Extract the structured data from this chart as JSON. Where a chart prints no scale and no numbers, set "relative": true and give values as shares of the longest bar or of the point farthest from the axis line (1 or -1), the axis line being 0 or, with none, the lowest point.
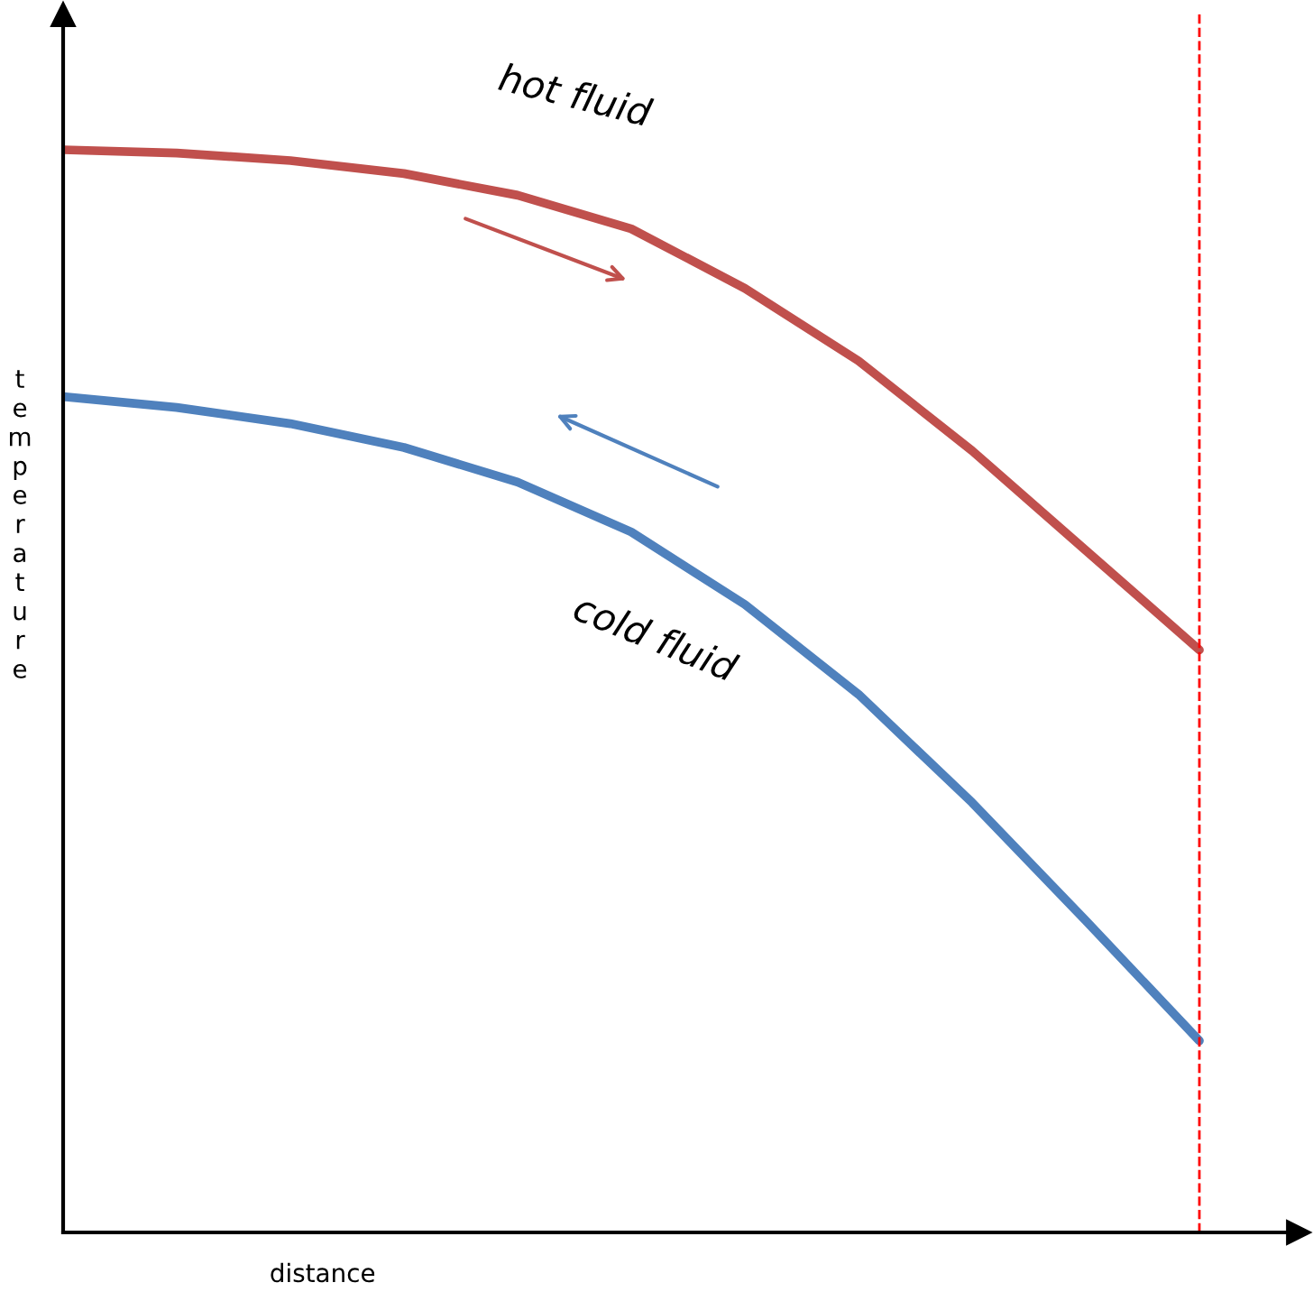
{
  "chart_data": {
    "type": "line",
    "relative": true,
    "xlabel": "distance",
    "ylabel": "temperature",
    "categories": [
      null,
      null,
      null,
      null,
      null,
      null,
      null,
      null,
      null,
      null,
      null
    ],
    "series": [
      {
        "name": "hot fluid",
        "color": "#c0504d",
        "values": [
          1,
          0.997,
          0.99,
          0.978,
          0.958,
          0.927,
          0.872,
          0.805,
          0.722,
          0.63,
          0.538
        ]
      },
      {
        "name": "cold fluid",
        "color": "#4f81bd",
        "values": [
          0.772,
          0.762,
          0.747,
          0.725,
          0.693,
          0.647,
          0.58,
          0.497,
          0.397,
          0.288,
          0.177
        ]
      }
    ],
    "legend": false,
    "marker": "none",
    "line_style": "solid"
  }
}
